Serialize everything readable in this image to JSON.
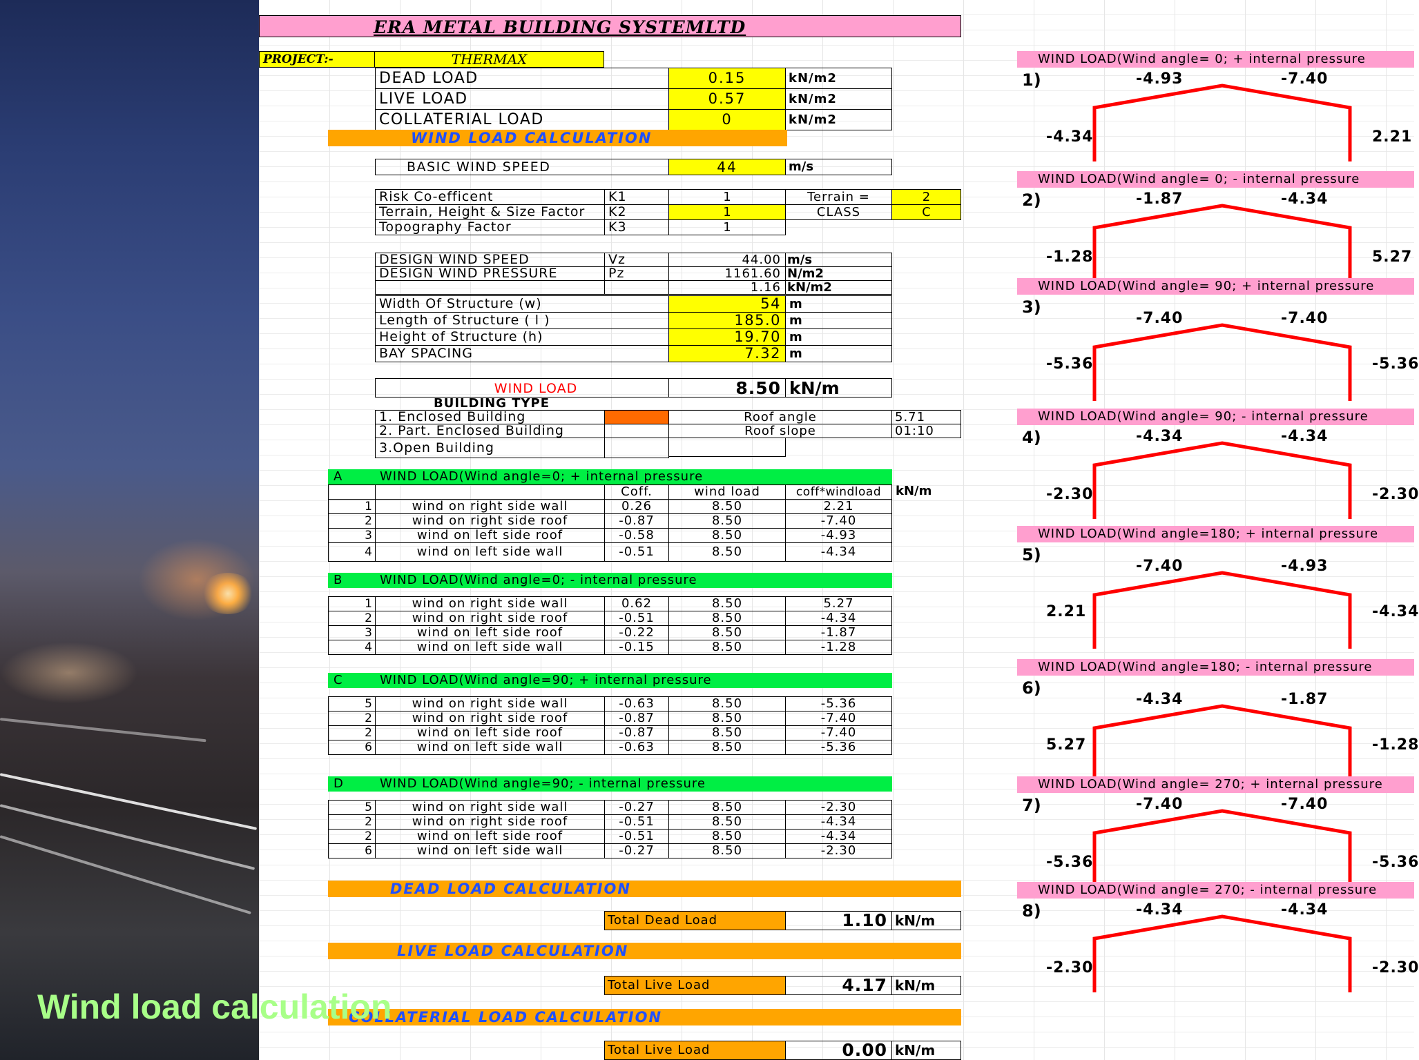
{
  "caption": "Wind load calculation",
  "company": "ERA METAL BUILDING SYSTEMLTD",
  "project": {
    "label": "PROJECT:-",
    "name": "THERMAX"
  },
  "loads": [
    {
      "label": "DEAD LOAD",
      "value": "0.15",
      "unit": "kN/m2"
    },
    {
      "label": "LIVE LOAD",
      "value": "0.57",
      "unit": "kN/m2"
    },
    {
      "label": "COLLATERIAL LOAD",
      "value": "0",
      "unit": "kN/m2"
    }
  ],
  "wind_header": "WIND LOAD CALCULATION",
  "basic_wind": {
    "label": "BASIC WIND SPEED",
    "value": "44",
    "unit": "m/s"
  },
  "factors": [
    {
      "label": "Risk Co-efficent",
      "sym": "K1",
      "value": "1"
    },
    {
      "label": "Terrain, Height & Size Factor",
      "sym": "K2",
      "value": "1"
    },
    {
      "label": "Topography Factor",
      "sym": "K3",
      "value": "1"
    }
  ],
  "terrain": {
    "label": "Terrain   =",
    "value": "2",
    "class_label": "CLASS",
    "class_value": "C"
  },
  "design": [
    {
      "label": "DESIGN WIND SPEED",
      "sym": "Vz",
      "value": "44.00",
      "unit": "m/s"
    },
    {
      "label": "DESIGN WIND PRESSURE",
      "sym": "Pz",
      "value": "1161.60",
      "unit": "N/m2"
    },
    {
      "label": "",
      "sym": "",
      "value": "1.16",
      "unit": "kN/m2"
    }
  ],
  "dims": [
    {
      "label": "Width Of Structure (w)",
      "value": "54",
      "unit": "m"
    },
    {
      "label": "Length of Structure ( l )",
      "value": "185.0",
      "unit": "m"
    },
    {
      "label": "Height of Structure (h)",
      "value": "19.70",
      "unit": "m"
    },
    {
      "label": "BAY SPACING",
      "value": "7.32",
      "unit": "m"
    }
  ],
  "wind_load": {
    "label": "WIND LOAD",
    "value": "8.50",
    "unit": "kN/m"
  },
  "building": {
    "title": "BUILDING TYPE",
    "types": [
      "1.  Enclosed Building",
      "2. Part. Enclosed  Building",
      "3.Open Building"
    ],
    "roof_angle_label": "Roof angle",
    "roof_angle": "5.71",
    "roof_slope_label": "Roof slope",
    "roof_slope": "01:10"
  },
  "col_headers": {
    "coff": "Coff.",
    "wind": "wind load",
    "cw": "coff*windload",
    "unit": "kN/m"
  },
  "cases": [
    {
      "letter": "A",
      "title": "WIND LOAD(Wind angle=0;  + internal pressure",
      "rows": [
        {
          "n": "1",
          "label": "wind on right side wall",
          "coff": "0.26",
          "wl": "8.50",
          "cw": "2.21"
        },
        {
          "n": "2",
          "label": "wind on right side roof",
          "coff": "-0.87",
          "wl": "8.50",
          "cw": "-7.40"
        },
        {
          "n": "3",
          "label": "wind on left side roof",
          "coff": "-0.58",
          "wl": "8.50",
          "cw": "-4.93"
        },
        {
          "n": "4",
          "label": "wind on left side wall",
          "coff": "-0.51",
          "wl": "8.50",
          "cw": "-4.34"
        }
      ]
    },
    {
      "letter": "B",
      "title": "WIND LOAD(Wind angle=0;  - internal pressure",
      "rows": [
        {
          "n": "1",
          "label": "wind on right side wall",
          "coff": "0.62",
          "wl": "8.50",
          "cw": "5.27"
        },
        {
          "n": "2",
          "label": "wind on right side roof",
          "coff": "-0.51",
          "wl": "8.50",
          "cw": "-4.34"
        },
        {
          "n": "3",
          "label": "wind on left side roof",
          "coff": "-0.22",
          "wl": "8.50",
          "cw": "-1.87"
        },
        {
          "n": "4",
          "label": "wind on left side wall",
          "coff": "-0.15",
          "wl": "8.50",
          "cw": "-1.28"
        }
      ]
    },
    {
      "letter": "C",
      "title": "WIND LOAD(Wind angle=90;  + internal pressure",
      "rows": [
        {
          "n": "5",
          "label": "wind on right side wall",
          "coff": "-0.63",
          "wl": "8.50",
          "cw": "-5.36"
        },
        {
          "n": "2",
          "label": "wind on right side roof",
          "coff": "-0.87",
          "wl": "8.50",
          "cw": "-7.40"
        },
        {
          "n": "2",
          "label": "wind on left side roof",
          "coff": "-0.87",
          "wl": "8.50",
          "cw": "-7.40"
        },
        {
          "n": "6",
          "label": "wind on left side wall",
          "coff": "-0.63",
          "wl": "8.50",
          "cw": "-5.36"
        }
      ]
    },
    {
      "letter": "D",
      "title": "WIND LOAD(Wind angle=90;  - internal pressure",
      "rows": [
        {
          "n": "5",
          "label": "wind on right side wall",
          "coff": "-0.27",
          "wl": "8.50",
          "cw": "-2.30"
        },
        {
          "n": "2",
          "label": "wind on right side roof",
          "coff": "-0.51",
          "wl": "8.50",
          "cw": "-4.34"
        },
        {
          "n": "2",
          "label": "wind on left side roof",
          "coff": "-0.51",
          "wl": "8.50",
          "cw": "-4.34"
        },
        {
          "n": "6",
          "label": "wind on left side wall",
          "coff": "-0.27",
          "wl": "8.50",
          "cw": "-2.30"
        }
      ]
    }
  ],
  "dead": {
    "header": "DEAD LOAD CALCULATION",
    "label": "Total Dead Load",
    "value": "1.10",
    "unit": "kN/m"
  },
  "live": {
    "header": "LIVE LOAD CALCULATION",
    "label": "Total Live Load",
    "value": "4.17",
    "unit": "kN/m"
  },
  "coll": {
    "header": "COLLATERIAL LOAD CALCULATION",
    "label": "Total Live Load",
    "value": "0.00",
    "unit": "kN/m"
  },
  "frames": [
    {
      "num": "1)",
      "title": "WIND LOAD(Wind angle= 0;  + internal pressure",
      "roof_left": "-4.93",
      "roof_right": "-7.40",
      "wall_left": "-4.34",
      "wall_right": "2.21"
    },
    {
      "num": "2)",
      "title": "WIND LOAD(Wind angle= 0;  - internal pressure",
      "roof_left": "-1.87",
      "roof_right": "-4.34",
      "wall_left": "-1.28",
      "wall_right": "5.27"
    },
    {
      "num": "3)",
      "title": "WIND LOAD(Wind angle= 90;  + internal pressure",
      "roof_left": "-7.40",
      "roof_right": "-7.40",
      "wall_left": "-5.36",
      "wall_right": "-5.36"
    },
    {
      "num": "4)",
      "title": "WIND LOAD(Wind angle= 90;  - internal pressure",
      "roof_left": "-4.34",
      "roof_right": "-4.34",
      "wall_left": "-2.30",
      "wall_right": "-2.30"
    },
    {
      "num": "5)",
      "title": "WIND LOAD(Wind angle=180;  + internal pressure",
      "roof_left": "-7.40",
      "roof_right": "-4.93",
      "wall_left": "2.21",
      "wall_right": "-4.34"
    },
    {
      "num": "6)",
      "title": "WIND LOAD(Wind angle=180;  - internal pressure",
      "roof_left": "-4.34",
      "roof_right": "-1.87",
      "wall_left": "5.27",
      "wall_right": "-1.28"
    },
    {
      "num": "7)",
      "title": "WIND LOAD(Wind angle= 270;  + internal pressure",
      "roof_left": "-7.40",
      "roof_right": "-7.40",
      "wall_left": "-5.36",
      "wall_right": "-5.36"
    },
    {
      "num": "8)",
      "title": "WIND LOAD(Wind angle= 270;  - internal pressure",
      "roof_left": "-4.34",
      "roof_right": "-4.34",
      "wall_left": "-2.30",
      "wall_right": "-2.30"
    }
  ]
}
